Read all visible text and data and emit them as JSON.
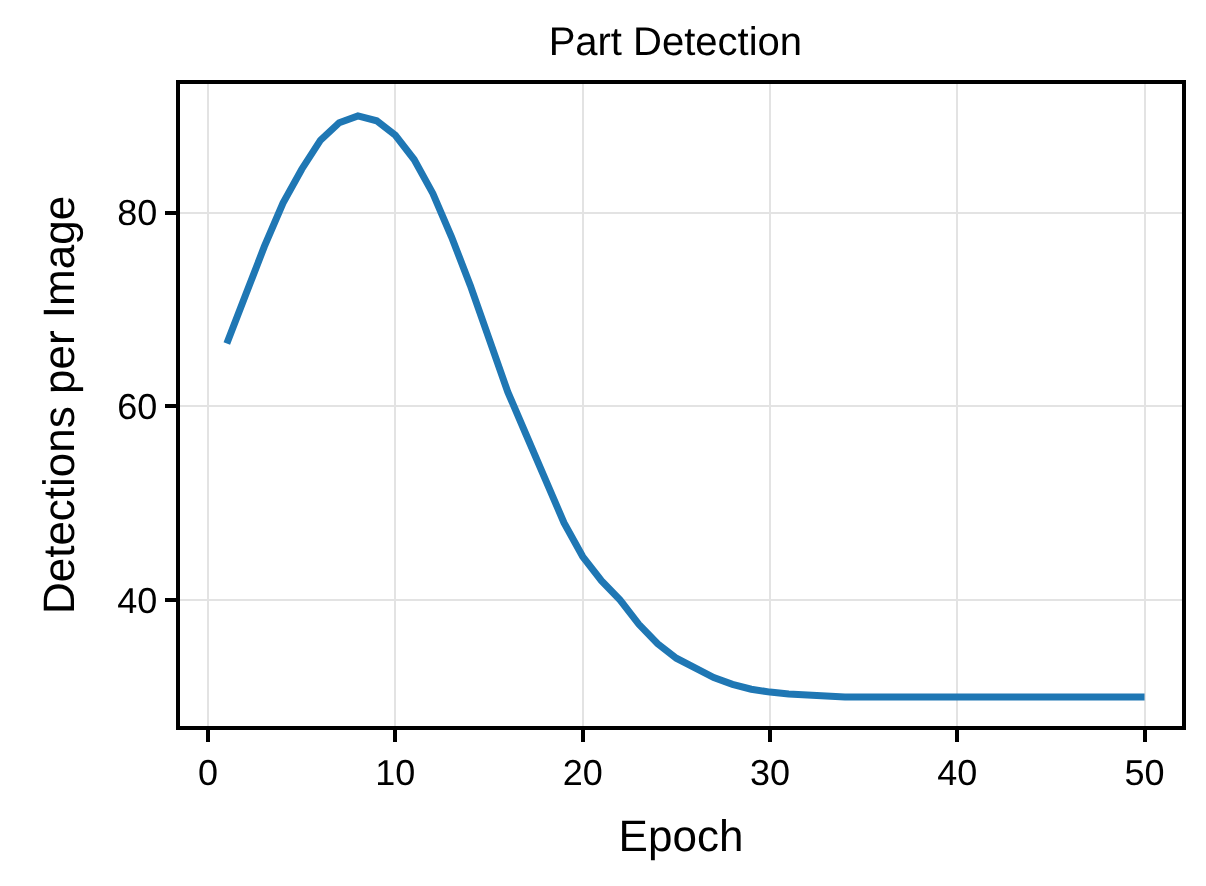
{
  "chart_data": {
    "type": "line",
    "title": "Part Detection",
    "xlabel": "Epoch",
    "ylabel": "Detections per Image",
    "x": [
      1,
      2,
      3,
      4,
      5,
      6,
      7,
      8,
      9,
      10,
      11,
      12,
      13,
      14,
      15,
      16,
      17,
      18,
      19,
      20,
      21,
      22,
      23,
      24,
      25,
      26,
      27,
      28,
      29,
      30,
      31,
      32,
      33,
      34,
      35,
      36,
      37,
      38,
      39,
      40,
      41,
      42,
      43,
      44,
      45,
      46,
      47,
      48,
      49,
      50
    ],
    "series": [
      {
        "color": "#1f77b4",
        "values": [
          66.5,
          71.5,
          76.5,
          81,
          84.5,
          87.5,
          89.3,
          90,
          89.5,
          88,
          85.5,
          82,
          77.5,
          72.5,
          67,
          61.5,
          57,
          52.5,
          48,
          44.5,
          42,
          40,
          37.5,
          35.5,
          34,
          33,
          32,
          31.3,
          30.8,
          30.5,
          30.3,
          30.2,
          30.1,
          30,
          30,
          30,
          30,
          30,
          30,
          30,
          30,
          30,
          30,
          30,
          30,
          30,
          30,
          30,
          30,
          30
        ]
      }
    ],
    "xlim": [
      -1.5,
      52
    ],
    "ylim": [
      27,
      93.3
    ],
    "xticks": [
      0,
      10,
      20,
      30,
      40,
      50
    ],
    "yticks": [
      40,
      60,
      80
    ],
    "grid": true,
    "marker": "none",
    "line_style": "solid"
  }
}
